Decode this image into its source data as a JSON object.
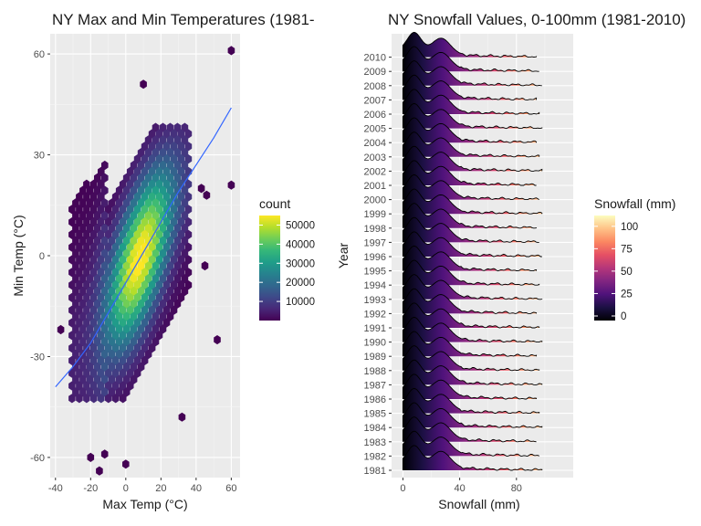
{
  "chart_data": [
    {
      "type": "hexbin",
      "title": "NY Max and Min Temperatures (1981-",
      "xlabel": "Max Temp (°C)",
      "ylabel": "Min Temp (°C)",
      "xlim": [
        -43,
        65
      ],
      "ylim": [
        -66,
        66
      ],
      "x_ticks": [
        -40,
        -20,
        0,
        20,
        40,
        60
      ],
      "y_ticks": [
        -60,
        -30,
        0,
        30,
        60
      ],
      "legend": {
        "title": "count",
        "position": "right",
        "ticks": [
          10000,
          20000,
          30000,
          40000,
          50000
        ],
        "tick_labels": [
          "10000",
          "20000",
          "30000",
          "40000",
          "50000"
        ],
        "range": [
          1,
          55000
        ],
        "colormap": "viridis"
      },
      "trend_line": {
        "color": "#3366ff",
        "points": [
          [
            -40,
            -39
          ],
          [
            -30,
            -33
          ],
          [
            -20,
            -26
          ],
          [
            -10,
            -17
          ],
          [
            0,
            -8
          ],
          [
            10,
            1
          ],
          [
            20,
            10
          ],
          [
            30,
            19
          ],
          [
            40,
            27
          ],
          [
            50,
            35
          ],
          [
            60,
            44
          ]
        ]
      },
      "hex_bins_note": "dense band along the trend line; outliers scattered",
      "outliers": [
        [
          60,
          61
        ],
        [
          10,
          51
        ],
        [
          60,
          21
        ],
        [
          -37,
          -22
        ],
        [
          -20,
          -60
        ],
        [
          -12,
          -59
        ],
        [
          -15,
          -64
        ],
        [
          32,
          -48
        ],
        [
          52,
          -25
        ],
        [
          43,
          20
        ],
        [
          45,
          -3
        ],
        [
          46,
          18
        ],
        [
          0,
          -62
        ]
      ]
    },
    {
      "type": "ridgeline",
      "title": "NY Snowfall Values, 0-100mm (1981-2010)",
      "xlabel": "Snowfall (mm)",
      "ylabel": "Year",
      "xlim": [
        -8,
        120
      ],
      "x_ticks": [
        0,
        40,
        80
      ],
      "categories": [
        "1981",
        "1982",
        "1983",
        "1984",
        "1985",
        "1986",
        "1987",
        "1988",
        "1989",
        "1990",
        "1991",
        "1992",
        "1993",
        "1994",
        "1995",
        "1996",
        "1997",
        "1998",
        "1999",
        "2000",
        "2001",
        "2002",
        "2003",
        "2004",
        "2005",
        "2006",
        "2007",
        "2008",
        "2009",
        "2010"
      ],
      "x_range": [
        0,
        98
      ],
      "density_peaks_mm": [
        8,
        27
      ],
      "legend": {
        "title": "Snowfall (mm)",
        "position": "right",
        "ticks": [
          0,
          25,
          50,
          75,
          100
        ],
        "tick_labels": [
          "0",
          "25",
          "50",
          "75",
          "100"
        ],
        "range": [
          0,
          112
        ],
        "colormap": "magma"
      }
    }
  ]
}
